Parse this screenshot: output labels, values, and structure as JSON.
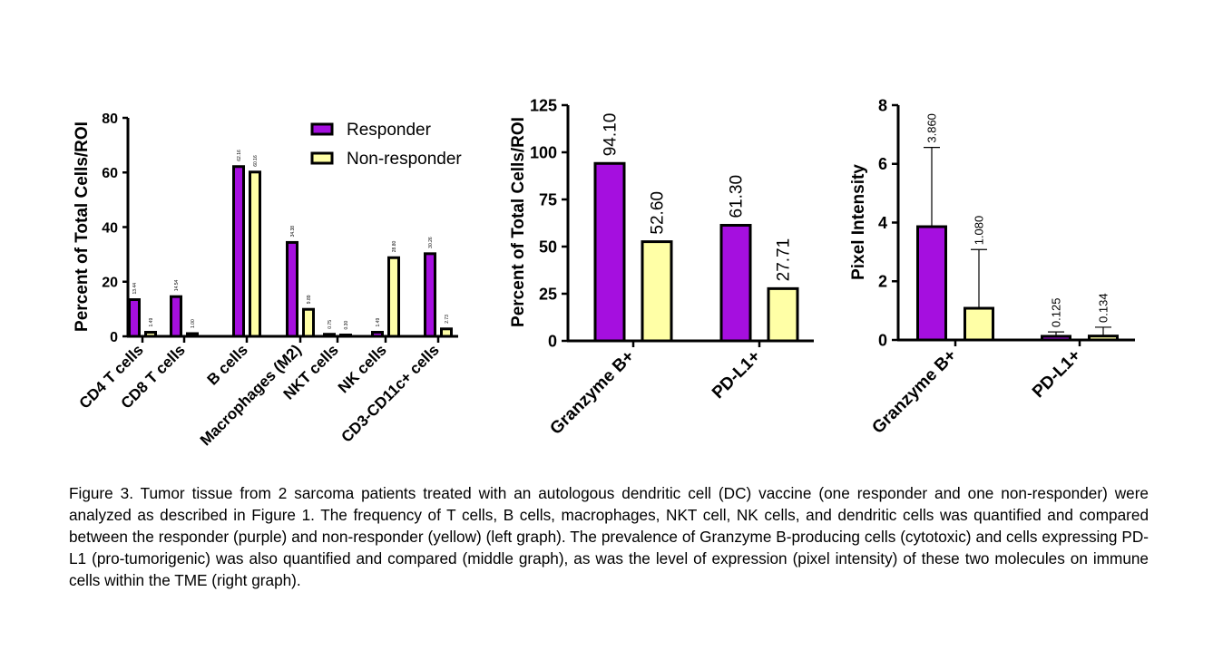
{
  "colors": {
    "responder": "#A50FDF",
    "non_responder": "#FFFFA6",
    "outline": "#000000"
  },
  "chart_data": [
    {
      "type": "bar",
      "title": "",
      "xlabel": "",
      "ylabel": "Percent of Total Cells/ROI",
      "ylim": [
        0,
        80
      ],
      "yticks": [
        "0",
        "20",
        "40",
        "60",
        "80"
      ],
      "categories": [
        "CD4 T cells",
        "CD8 T cells",
        "B cells",
        "Macrophages (M2)",
        "NKT cells",
        "NK cells",
        "CD3-CD11c+ cells"
      ],
      "legend": {
        "position": "top-right",
        "entries": [
          "Responder",
          "Non-responder"
        ]
      },
      "series": [
        {
          "name": "Responder",
          "values": [
            13.44,
            14.54,
            62.16,
            34.38,
            0.75,
            1.49,
            30.26
          ],
          "labels": [
            "13.44",
            "14.54",
            "62.16",
            "34.38",
            "0.75",
            "1.49",
            "30.26"
          ]
        },
        {
          "name": "Non-responder",
          "values": [
            1.49,
            1.0,
            60.16,
            9.89,
            0.3,
            28.8,
            2.73
          ],
          "labels": [
            "1.49",
            "1.00",
            "60.16",
            "9.89",
            "0.30",
            "28.80",
            "2.73"
          ]
        }
      ]
    },
    {
      "type": "bar",
      "title": "",
      "xlabel": "",
      "ylabel": "Percent of Total Cells/ROI",
      "ylim": [
        0,
        125
      ],
      "yticks": [
        "0",
        "25",
        "50",
        "75",
        "100",
        "125"
      ],
      "categories": [
        "Granzyme B+",
        "PD-L1+"
      ],
      "series": [
        {
          "values": [
            94.1,
            61.3
          ],
          "labels": [
            "94.10",
            "61.30"
          ]
        },
        {
          "values": [
            52.6,
            27.71
          ],
          "labels": [
            "52.60",
            "27.71"
          ]
        }
      ]
    },
    {
      "type": "bar",
      "title": "",
      "xlabel": "",
      "ylabel": "Pixel Intensity",
      "ylim": [
        0,
        8
      ],
      "yticks": [
        "0",
        "2",
        "4",
        "6",
        "8"
      ],
      "categories": [
        "Granzyme B+",
        "PD-L1+"
      ],
      "series": [
        {
          "values": [
            3.86,
            0.125
          ],
          "labels": [
            "3.860",
            "0.125"
          ],
          "error": [
            2.7,
            0.15
          ]
        },
        {
          "values": [
            1.08,
            0.134
          ],
          "labels": [
            "1.080",
            "0.134"
          ],
          "error": [
            2.0,
            0.3
          ]
        }
      ]
    }
  ],
  "caption": "Figure 3. Tumor tissue from 2 sarcoma patients treated with an autologous dendritic cell (DC) vaccine (one responder and one non-responder) were analyzed as described in Figure 1.  The frequency of  T cells, B cells, macrophages, NKT cell, NK cells, and dendritic cells was quantified and compared  between the responder (purple) and non-responder (yellow) (left graph).  The prevalence of Granzyme B-producing cells (cytotoxic) and cells expressing PD-L1 (pro-tumorigenic) was also quantified and compared (middle graph), as was the level of expression (pixel intensity) of these two molecules on immune cells within the TME (right graph)."
}
